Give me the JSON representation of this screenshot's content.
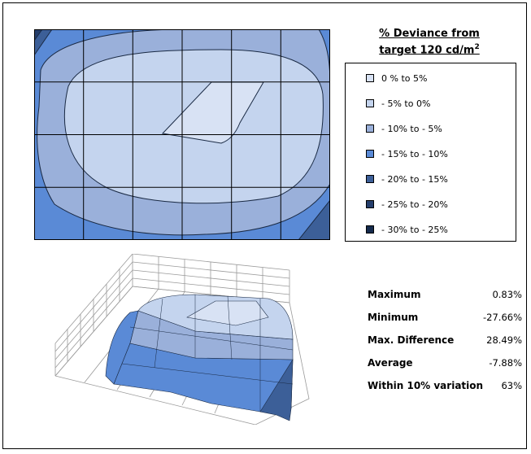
{
  "legend": {
    "title_line1": "% Deviance from",
    "title_line2": "target 120 cd/m",
    "title_sup": "2",
    "items": [
      {
        "label": "0 %  to  5%",
        "color": "#d8e2f4"
      },
      {
        "label": "- 5%  to  0%",
        "color": "#c4d4ee"
      },
      {
        "label": "- 10%  to  - 5%",
        "color": "#9ab0da"
      },
      {
        "label": "- 15%  to  - 10%",
        "color": "#5a8ad6"
      },
      {
        "label": "- 20%  to  - 15%",
        "color": "#3c5f98"
      },
      {
        "label": "- 25%  to  - 20%",
        "color": "#253e6c"
      },
      {
        "label": "- 30%  to  - 25%",
        "color": "#152a4c"
      }
    ]
  },
  "stats": [
    {
      "label": "Maximum",
      "value": "0.83%"
    },
    {
      "label": "Minimum",
      "value": "-27.66%"
    },
    {
      "label": "Max. Difference",
      "value": "28.49%"
    },
    {
      "label": "Average",
      "value": "-7.88%"
    },
    {
      "label": "Within 10% variation",
      "value": "63%"
    }
  ],
  "chart_data": {
    "type": "heatmap",
    "grid_lines": true,
    "legend_position": "right"
  }
}
